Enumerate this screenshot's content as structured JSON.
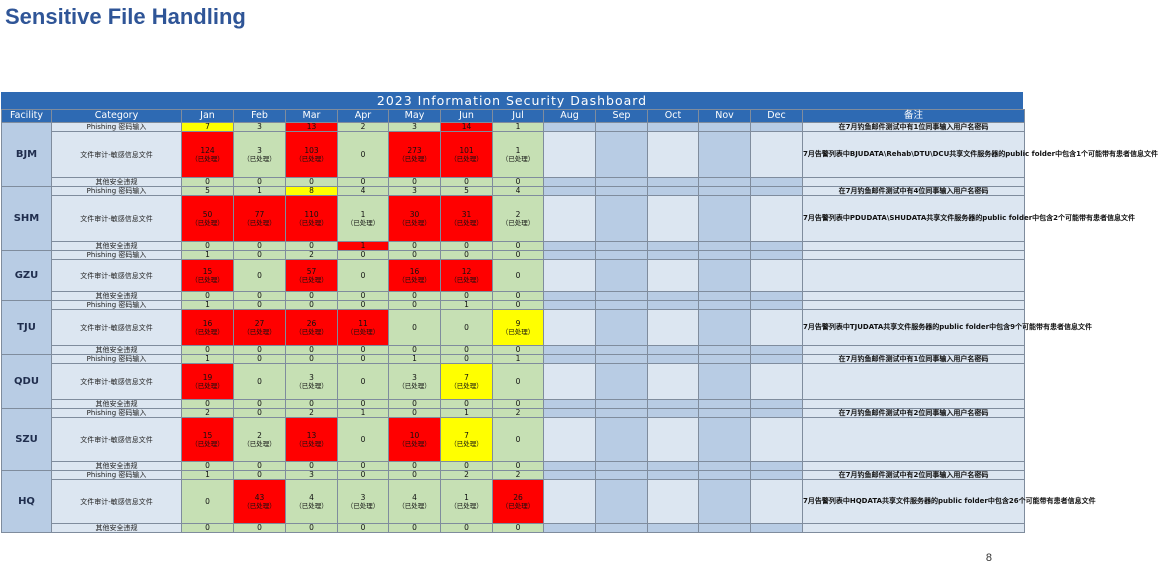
{
  "slide_title": "Sensitive File Handling",
  "page_number": "8",
  "dashboard_title": "2023 Information Security Dashboard",
  "headers": {
    "facility": "Facility",
    "category": "Category",
    "months": [
      "Jan",
      "Feb",
      "Mar",
      "Apr",
      "May",
      "Jun",
      "Jul",
      "Aug",
      "Sep",
      "Oct",
      "Nov",
      "Dec"
    ],
    "note": "备注"
  },
  "categories": {
    "phishing": "Phishing 密码输入",
    "sensitive": "文件审计-敏感信息文件",
    "other": "其他安全违规"
  },
  "handled_label": "（已处理）",
  "colors": {
    "green": "#c6e0b4",
    "red": "#ff0000",
    "yellow": "#ffff00",
    "header_blue": "#2e6ab3"
  },
  "facilities": [
    {
      "name": "BJM",
      "phishing": {
        "values": [
          "7",
          "3",
          "13",
          "2",
          "3",
          "14",
          "1"
        ],
        "colors": [
          "y",
          "g",
          "r",
          "g",
          "g",
          "r",
          "g"
        ]
      },
      "sensitive": {
        "values": [
          "124",
          "3",
          "103",
          "0",
          "273",
          "101",
          "1"
        ],
        "handled": [
          true,
          true,
          true,
          false,
          true,
          true,
          true
        ],
        "colors": [
          "r",
          "g",
          "r",
          "g",
          "r",
          "r",
          "g"
        ]
      },
      "other": {
        "values": [
          "0",
          "0",
          "0",
          "0",
          "0",
          "0",
          "0"
        ],
        "colors": [
          "g",
          "g",
          "g",
          "g",
          "g",
          "g",
          "g"
        ]
      },
      "note_phishing": "在7月钓鱼邮件测试中有1位同事输入用户名密码",
      "note_sensitive": "7月告警列表中BJUDATA\\Rehab\\DTU\\DCU共享文件服务器的public folder中包含1个可能带有患者信息文件"
    },
    {
      "name": "SHM",
      "phishing": {
        "values": [
          "5",
          "1",
          "8",
          "4",
          "3",
          "5",
          "4"
        ],
        "colors": [
          "g",
          "g",
          "y",
          "g",
          "g",
          "g",
          "g"
        ]
      },
      "sensitive": {
        "values": [
          "50",
          "77",
          "110",
          "1",
          "30",
          "31",
          "2"
        ],
        "handled": [
          true,
          true,
          true,
          true,
          true,
          true,
          true
        ],
        "colors": [
          "r",
          "r",
          "r",
          "g",
          "r",
          "r",
          "g"
        ]
      },
      "other": {
        "values": [
          "0",
          "0",
          "0",
          "1",
          "0",
          "0",
          "0"
        ],
        "colors": [
          "g",
          "g",
          "g",
          "r",
          "g",
          "g",
          "g"
        ]
      },
      "note_phishing": "在7月钓鱼邮件测试中有4位同事输入用户名密码",
      "note_sensitive": "7月告警列表中PDUDATA\\SHUDATA共享文件服务器的public folder中包含2个可能带有患者信息文件"
    },
    {
      "name": "GZU",
      "phishing": {
        "values": [
          "1",
          "0",
          "2",
          "0",
          "0",
          "0",
          "0"
        ],
        "colors": [
          "g",
          "g",
          "g",
          "g",
          "g",
          "g",
          "g"
        ]
      },
      "sensitive": {
        "values": [
          "15",
          "0",
          "57",
          "0",
          "16",
          "12",
          "0"
        ],
        "handled": [
          true,
          false,
          true,
          false,
          true,
          true,
          false
        ],
        "colors": [
          "r",
          "g",
          "r",
          "g",
          "r",
          "r",
          "g"
        ]
      },
      "other": {
        "values": [
          "0",
          "0",
          "0",
          "0",
          "0",
          "0",
          "0"
        ],
        "colors": [
          "g",
          "g",
          "g",
          "g",
          "g",
          "g",
          "g"
        ]
      },
      "note_phishing": "",
      "note_sensitive": ""
    },
    {
      "name": "TJU",
      "phishing": {
        "values": [
          "1",
          "0",
          "0",
          "0",
          "0",
          "1",
          "0"
        ],
        "colors": [
          "g",
          "g",
          "g",
          "g",
          "g",
          "g",
          "g"
        ]
      },
      "sensitive": {
        "values": [
          "16",
          "27",
          "26",
          "11",
          "0",
          "0",
          "9"
        ],
        "handled": [
          true,
          true,
          true,
          true,
          false,
          false,
          true
        ],
        "colors": [
          "r",
          "r",
          "r",
          "r",
          "g",
          "g",
          "y"
        ]
      },
      "other": {
        "values": [
          "0",
          "0",
          "0",
          "0",
          "0",
          "0",
          "0"
        ],
        "colors": [
          "g",
          "g",
          "g",
          "g",
          "g",
          "g",
          "g"
        ]
      },
      "note_phishing": "",
      "note_sensitive": "7月告警列表中TJUDATA共享文件服务器的public folder中包含9个可能带有患者信息文件"
    },
    {
      "name": "QDU",
      "phishing": {
        "values": [
          "1",
          "0",
          "0",
          "0",
          "1",
          "0",
          "1"
        ],
        "colors": [
          "g",
          "g",
          "g",
          "g",
          "g",
          "g",
          "g"
        ]
      },
      "sensitive": {
        "values": [
          "19",
          "0",
          "3",
          "0",
          "3",
          "7",
          "0"
        ],
        "handled": [
          true,
          false,
          true,
          false,
          true,
          true,
          false
        ],
        "colors": [
          "r",
          "g",
          "g",
          "g",
          "g",
          "y",
          "g"
        ]
      },
      "other": {
        "values": [
          "0",
          "0",
          "0",
          "0",
          "0",
          "0",
          "0"
        ],
        "colors": [
          "g",
          "g",
          "g",
          "g",
          "g",
          "g",
          "g"
        ]
      },
      "note_phishing": "在7月钓鱼邮件测试中有1位同事输入用户名密码",
      "note_sensitive": ""
    },
    {
      "name": "SZU",
      "phishing": {
        "values": [
          "2",
          "0",
          "2",
          "1",
          "0",
          "1",
          "2"
        ],
        "colors": [
          "g",
          "g",
          "g",
          "g",
          "g",
          "g",
          "g"
        ]
      },
      "sensitive": {
        "values": [
          "15",
          "2",
          "13",
          "0",
          "10",
          "7",
          "0"
        ],
        "handled": [
          true,
          true,
          true,
          false,
          true,
          true,
          false
        ],
        "colors": [
          "r",
          "g",
          "r",
          "g",
          "r",
          "y",
          "g"
        ]
      },
      "other": {
        "values": [
          "0",
          "0",
          "0",
          "0",
          "0",
          "0",
          "0"
        ],
        "colors": [
          "g",
          "g",
          "g",
          "g",
          "g",
          "g",
          "g"
        ]
      },
      "note_phishing": "在7月钓鱼邮件测试中有2位同事输入用户名密码",
      "note_sensitive": ""
    },
    {
      "name": "HQ",
      "phishing": {
        "values": [
          "1",
          "0",
          "3",
          "0",
          "0",
          "2",
          "2"
        ],
        "colors": [
          "g",
          "g",
          "g",
          "g",
          "g",
          "g",
          "g"
        ]
      },
      "sensitive": {
        "values": [
          "0",
          "43",
          "4",
          "3",
          "4",
          "1",
          "26"
        ],
        "handled": [
          false,
          true,
          true,
          true,
          true,
          true,
          true
        ],
        "colors": [
          "g",
          "r",
          "g",
          "g",
          "g",
          "g",
          "r"
        ]
      },
      "other": {
        "values": [
          "0",
          "0",
          "0",
          "0",
          "0",
          "0",
          "0"
        ],
        "colors": [
          "g",
          "g",
          "g",
          "g",
          "g",
          "g",
          "g"
        ]
      },
      "note_phishing": "在7月钓鱼邮件测试中有2位同事输入用户名密码",
      "note_sensitive": "7月告警列表中HQDATA共享文件服务器的public folder中包含26个可能带有患者信息文件"
    }
  ]
}
